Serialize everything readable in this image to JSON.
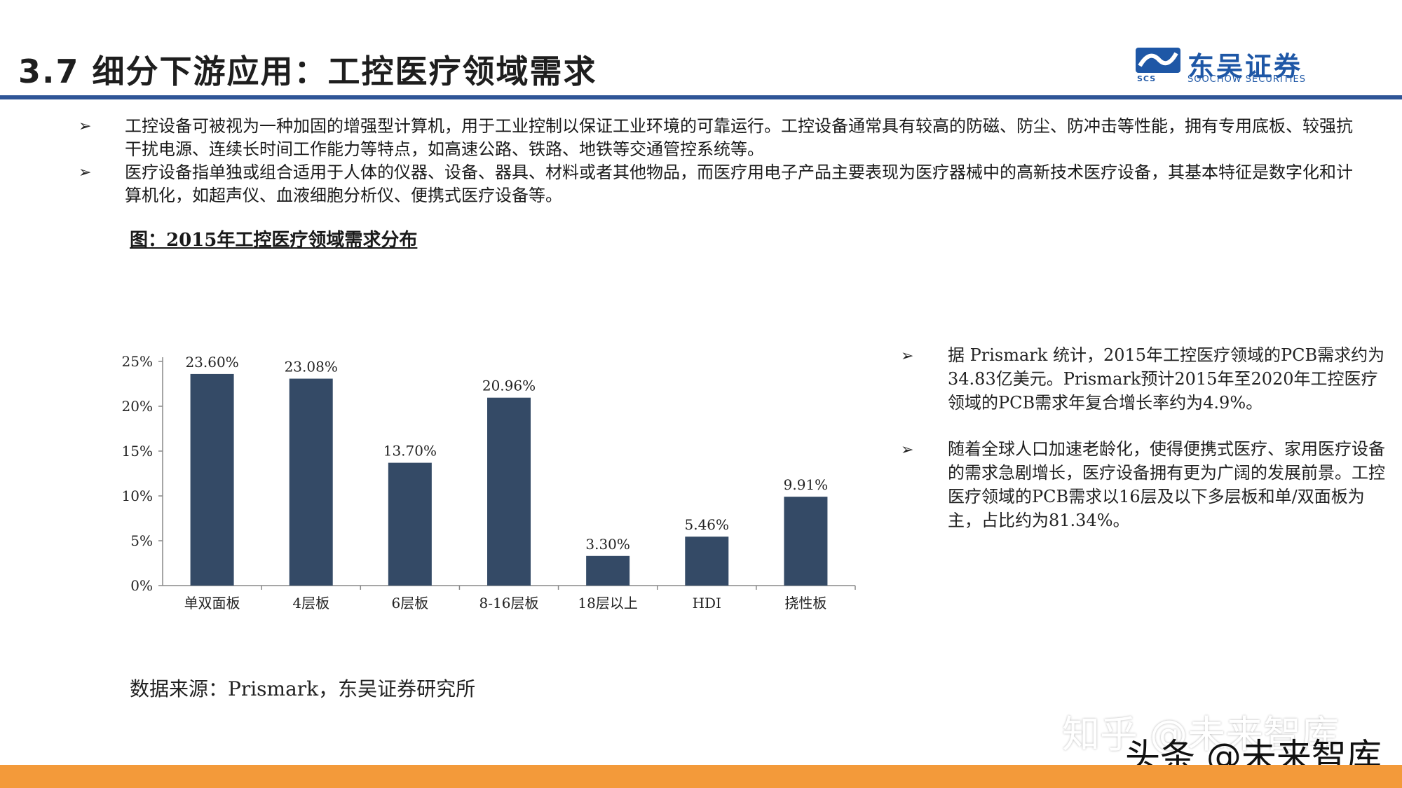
{
  "slide": {
    "title": "3.7  细分下游应用：工控医疗领域需求"
  },
  "logo": {
    "name_cn": "东吴证券",
    "name_en": "SOOCHOW SECURITIES",
    "abbr": "SCS",
    "color": "#1e57a6"
  },
  "bullets": [
    {
      "text": "工控设备可被视为一种加固的增强型计算机，用于工业控制以保证工业环境的可靠运行。工控设备通常具有较高的防磁、防尘、防冲击等性能，拥有专用底板、较强抗干扰电源、连续长时间工作能力等特点，如高速公路、铁路、地铁等交通管控系统等。"
    },
    {
      "text": "医疗设备指单独或组合适用于人体的仪器、设备、器具、材料或者其他物品，而医疗用电子产品主要表现为医疗器械中的高新技术医疗设备，其基本特征是数字化和计算机化，如超声仪、血液细胞分析仪、便携式医疗设备等。"
    }
  ],
  "bullet_marker": "➢",
  "figure_title": "图：2015年工控医疗领域需求分布",
  "chart_data": {
    "type": "bar",
    "categories": [
      "单双面板",
      "4层板",
      "6层板",
      "8-16层板",
      "18层以上",
      "HDI",
      "挠性板"
    ],
    "values": [
      23.6,
      23.08,
      13.7,
      20.96,
      3.3,
      5.46,
      9.91
    ],
    "value_labels": [
      "23.60%",
      "23.08%",
      "13.70%",
      "20.96%",
      "3.30%",
      "5.46%",
      "9.91%"
    ],
    "y_ticks": [
      "0%",
      "5%",
      "10%",
      "15%",
      "20%",
      "25%"
    ],
    "ylim": [
      0,
      25
    ],
    "grid": false,
    "bar_color": "#344a66"
  },
  "side_notes": [
    {
      "text": "据 Prismark 统计，2015年工控医疗领域的PCB需求约为34.83亿美元。Prismark预计2015年至2020年工控医疗领域的PCB需求年复合增长率约为4.9%。"
    },
    {
      "text": "随着全球人口加速老龄化，使得便携式医疗、家用医疗设备的需求急剧增长，医疗设备拥有更为广阔的发展前景。工控医疗领域的PCB需求以16层及以下多层板和单/双面板为主，占比约为81.34%。"
    }
  ],
  "source": "数据来源：Prismark，东吴证券研究所",
  "watermarks": {
    "zhihu": "知乎 @未来智库",
    "toutiao": "头条 @未来智库"
  },
  "colors": {
    "title_rule": "#2f5597",
    "footer_bar": "#f39a3a"
  }
}
